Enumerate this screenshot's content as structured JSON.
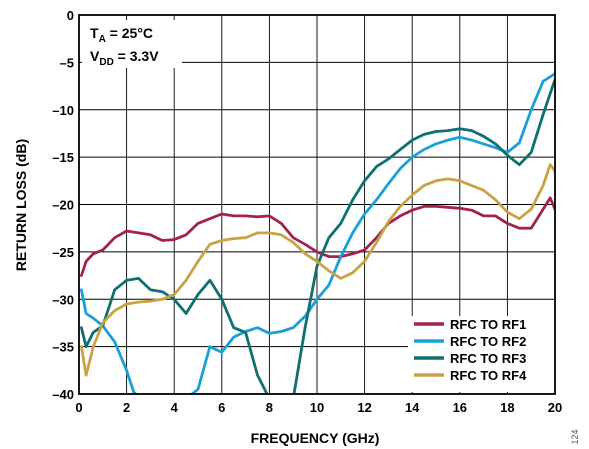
{
  "chart_data": {
    "type": "line",
    "xlabel": "FREQUENCY (GHz)",
    "ylabel": "RETURN LOSS (dB)",
    "xlim": [
      0,
      20
    ],
    "ylim": [
      -40,
      0
    ],
    "x_ticks": [
      0,
      2,
      4,
      6,
      8,
      10,
      12,
      14,
      16,
      18,
      20
    ],
    "y_ticks": [
      0,
      -5,
      -10,
      -15,
      -20,
      -25,
      -30,
      -35,
      -40
    ],
    "x_tick_labels": [
      "0",
      "2",
      "4",
      "6",
      "8",
      "10",
      "12",
      "14",
      "16",
      "18",
      "20"
    ],
    "y_tick_labels": [
      "0",
      "–5",
      "–10",
      "–15",
      "–20",
      "–25",
      "–30",
      "–35",
      "–40"
    ],
    "grid": true,
    "legend_position": "bottom-right",
    "annotation": {
      "ta_main": "T",
      "ta_sub": "A",
      "ta_rest": " = 25°C",
      "vdd_main": "V",
      "vdd_sub": "DD",
      "vdd_rest": " = 3.3V"
    },
    "figure_number": "124",
    "series": [
      {
        "name": "RFC TO RF1",
        "color": "#a3214e",
        "x": [
          0.1,
          0.3,
          0.6,
          1.0,
          1.5,
          2.0,
          2.5,
          3.0,
          3.5,
          4.0,
          4.5,
          5.0,
          5.5,
          6.0,
          6.5,
          7.0,
          7.5,
          8.0,
          8.5,
          9.0,
          9.5,
          10.0,
          10.5,
          11.0,
          11.5,
          12.0,
          12.5,
          13.0,
          13.5,
          14.0,
          14.5,
          15.0,
          15.5,
          16.0,
          16.5,
          17.0,
          17.5,
          18.0,
          18.5,
          19.0,
          19.5,
          19.8,
          20.0
        ],
        "values": [
          -27.5,
          -26.0,
          -25.2,
          -24.8,
          -23.5,
          -22.8,
          -23.0,
          -23.2,
          -23.8,
          -23.7,
          -23.2,
          -22.0,
          -21.5,
          -21.0,
          -21.2,
          -21.2,
          -21.3,
          -21.2,
          -22.0,
          -23.5,
          -24.2,
          -25.0,
          -25.5,
          -25.5,
          -25.2,
          -24.8,
          -23.5,
          -22.0,
          -21.2,
          -20.6,
          -20.2,
          -20.2,
          -20.3,
          -20.4,
          -20.6,
          -21.2,
          -21.2,
          -22.0,
          -22.5,
          -22.5,
          -20.5,
          -19.3,
          -20.5
        ]
      },
      {
        "name": "RFC TO RF2",
        "color": "#1aa0d8",
        "x": [
          0.1,
          0.3,
          0.6,
          1.0,
          1.5,
          2.0,
          2.3,
          2.6,
          3.0,
          3.5,
          4.0,
          4.5,
          5.0,
          5.5,
          6.0,
          6.5,
          7.0,
          7.5,
          8.0,
          8.5,
          9.0,
          9.5,
          10.0,
          10.5,
          11.0,
          11.5,
          12.0,
          12.5,
          13.0,
          13.5,
          14.0,
          14.5,
          15.0,
          15.5,
          16.0,
          16.5,
          17.0,
          17.5,
          18.0,
          18.5,
          19.0,
          19.5,
          20.0
        ],
        "values": [
          -29.0,
          -31.5,
          -32.0,
          -32.8,
          -34.5,
          -37.5,
          -39.8,
          -40.5,
          -40.6,
          -40.8,
          -40.8,
          -40.5,
          -39.5,
          -35.0,
          -35.6,
          -34.0,
          -33.4,
          -33.0,
          -33.6,
          -33.4,
          -33.0,
          -31.8,
          -30.0,
          -28.5,
          -25.5,
          -23.0,
          -21.0,
          -19.5,
          -17.8,
          -16.2,
          -15.0,
          -14.2,
          -13.6,
          -13.2,
          -12.9,
          -13.2,
          -13.6,
          -14.0,
          -14.5,
          -13.5,
          -10.0,
          -7.0,
          -6.2
        ]
      },
      {
        "name": "RFC TO RF3",
        "color": "#0f7070",
        "x": [
          0.1,
          0.3,
          0.6,
          1.0,
          1.5,
          2.0,
          2.5,
          3.0,
          3.5,
          4.0,
          4.5,
          5.0,
          5.5,
          6.0,
          6.5,
          7.0,
          7.5,
          8.0,
          8.5,
          9.0,
          9.5,
          10.0,
          10.5,
          11.0,
          11.5,
          12.0,
          12.5,
          13.0,
          13.5,
          14.0,
          14.5,
          15.0,
          15.5,
          16.0,
          16.5,
          17.0,
          17.5,
          18.0,
          18.5,
          19.0,
          19.5,
          20.0
        ],
        "values": [
          -33.0,
          -35.0,
          -33.5,
          -32.8,
          -29.0,
          -28.0,
          -27.8,
          -29.0,
          -29.2,
          -30.0,
          -31.5,
          -29.5,
          -28.0,
          -30.0,
          -33.0,
          -33.5,
          -38.0,
          -40.5,
          -41.0,
          -40.5,
          -33.0,
          -26.5,
          -23.5,
          -22.0,
          -19.5,
          -17.5,
          -16.0,
          -15.2,
          -14.2,
          -13.2,
          -12.6,
          -12.3,
          -12.2,
          -12.0,
          -12.2,
          -12.8,
          -13.6,
          -14.8,
          -15.8,
          -14.5,
          -10.5,
          -6.8
        ]
      },
      {
        "name": "RFC TO RF4",
        "color": "#c9a244",
        "x": [
          0.1,
          0.3,
          0.6,
          1.0,
          1.5,
          2.0,
          2.5,
          3.0,
          3.5,
          4.0,
          4.5,
          5.0,
          5.5,
          6.0,
          6.5,
          7.0,
          7.5,
          8.0,
          8.5,
          9.0,
          9.5,
          10.0,
          10.5,
          11.0,
          11.5,
          12.0,
          12.5,
          13.0,
          13.5,
          14.0,
          14.5,
          15.0,
          15.5,
          16.0,
          16.5,
          17.0,
          17.5,
          18.0,
          18.5,
          19.0,
          19.5,
          19.8,
          20.0
        ],
        "values": [
          -35.0,
          -38.0,
          -35.0,
          -32.5,
          -31.2,
          -30.5,
          -30.3,
          -30.2,
          -30.0,
          -29.5,
          -28.0,
          -26.0,
          -24.2,
          -23.8,
          -23.6,
          -23.5,
          -23.0,
          -23.0,
          -23.2,
          -24.0,
          -25.2,
          -26.0,
          -27.0,
          -27.8,
          -27.2,
          -26.0,
          -24.0,
          -21.8,
          -20.2,
          -19.0,
          -18.0,
          -17.5,
          -17.3,
          -17.5,
          -18.0,
          -18.5,
          -19.5,
          -20.8,
          -21.5,
          -20.5,
          -18.0,
          -15.8,
          -16.5
        ]
      }
    ]
  }
}
